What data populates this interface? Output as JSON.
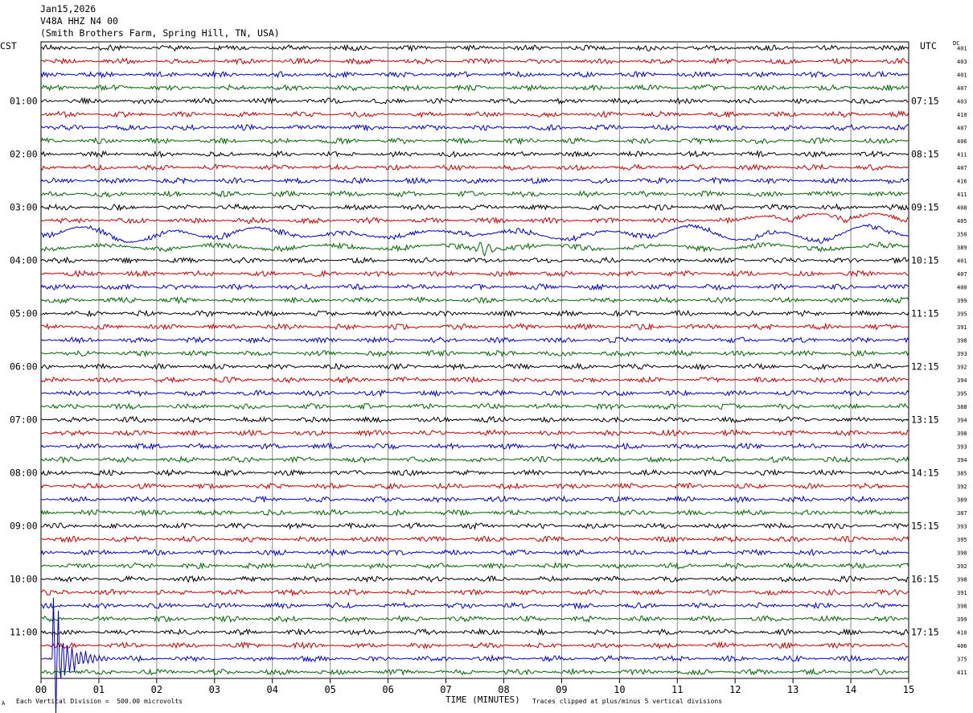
{
  "header": {
    "date": "Jan15,2026",
    "station": "V48A HHZ N4 00",
    "location": "(Smith Brothers Farm, Spring Hill, TN, USA)"
  },
  "footer": {
    "scale_note": "Each Vertical Division =  500.00 microvolts",
    "clip_note": "Traces clipped at plus/minus 5 vertical divisions",
    "corner_mark": "A"
  },
  "colors": {
    "trace_cycle": [
      "#000000",
      "#cc0000",
      "#0000cc",
      "#006600"
    ],
    "grid": "#888888"
  },
  "chart_data": {
    "type": "line",
    "subtype": "helicorder",
    "left_axis_label": "CST",
    "right_axis_label": "UTC",
    "dc_label": "DC",
    "xlabel": "TIME (MINUTES)",
    "x_ticks": [
      "00",
      "01",
      "02",
      "03",
      "04",
      "05",
      "06",
      "07",
      "08",
      "09",
      "10",
      "11",
      "12",
      "13",
      "14",
      "15"
    ],
    "x_range": [
      0,
      15
    ],
    "traces_per_hour": 4,
    "minutes_per_trace": 15,
    "left_hour_labels": [
      "01:00",
      "02:00",
      "03:00",
      "04:00",
      "05:00",
      "06:00",
      "07:00",
      "08:00",
      "09:00",
      "10:00",
      "11:00"
    ],
    "right_hour_labels": [
      "07:15",
      "08:15",
      "09:15",
      "10:15",
      "11:15",
      "12:15",
      "13:15",
      "14:15",
      "15:15",
      "16:15",
      "17:15"
    ],
    "dc_offsets": [
      401,
      403,
      401,
      407,
      403,
      410,
      407,
      406,
      411,
      407,
      416,
      411,
      408,
      405,
      350,
      389,
      401,
      407,
      400,
      399,
      395,
      391,
      398,
      393,
      392,
      394,
      395,
      388,
      394,
      398,
      393,
      394,
      385,
      392,
      389,
      387,
      393,
      395,
      390,
      392,
      398,
      391,
      398,
      399,
      410,
      406,
      375,
      411
    ],
    "noise_amplitude_divisions": 0.22,
    "notable_events": [
      {
        "trace_index": 14,
        "description": "long-period wandering",
        "amplitude_divisions": 0.7
      },
      {
        "trace_index": 13,
        "description": "slow drift late in window",
        "start_min": 11.5,
        "amplitude_divisions": 0.5
      },
      {
        "trace_index": 15,
        "description": "bursts",
        "start_min": 7.5,
        "amplitude_divisions": 0.5
      },
      {
        "trace_index": 46,
        "description": "local event, clipped spike",
        "start_min": 0.2,
        "amplitude_divisions": 5
      }
    ]
  }
}
